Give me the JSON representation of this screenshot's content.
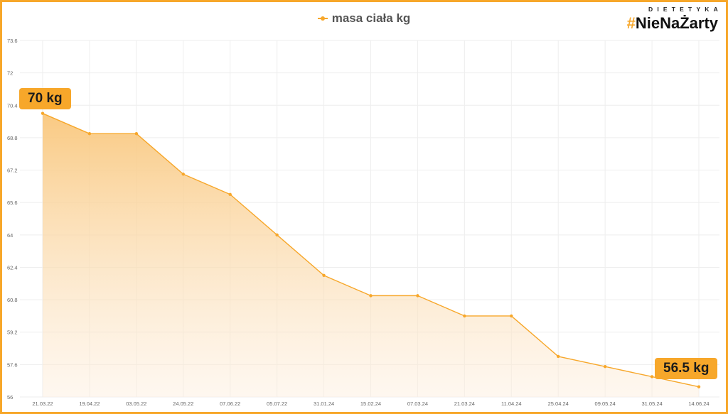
{
  "legend": {
    "label": "masa ciała kg"
  },
  "logo": {
    "top_text": "DIETETYKA",
    "hash": "#",
    "name": "NieNaŻarty"
  },
  "callouts": {
    "start": "70 kg",
    "end": "56.5 kg"
  },
  "colors": {
    "accent": "#f7a72a",
    "frame": "#f7a72a",
    "grid": "#eeeeee",
    "tick_text": "#666666"
  },
  "chart_data": {
    "type": "area",
    "title": "",
    "series": [
      {
        "name": "masa ciała kg",
        "values": [
          70.0,
          69.0,
          69.0,
          67.0,
          66.0,
          64.0,
          62.0,
          61.0,
          61.0,
          60.0,
          60.0,
          58.0,
          57.5,
          57.0,
          56.5
        ]
      }
    ],
    "categories": [
      "21.03.22",
      "19.04.22",
      "03.05.22",
      "24.05.22",
      "07.06.22",
      "05.07.22",
      "31.01.24",
      "15.02.24",
      "07.03.24",
      "21.03.24",
      "11.04.24",
      "25.04.24",
      "09.05.24",
      "31.05.24",
      "14.06.24"
    ],
    "y_ticks": [
      "56",
      "57.6",
      "59.2",
      "60.8",
      "62.4",
      "64",
      "65.6",
      "67.2",
      "68.8",
      "70.4",
      "72",
      "73.6"
    ],
    "ylim": [
      56,
      73.6
    ],
    "xlabel": "",
    "ylabel": "",
    "grid": true,
    "legend_position": "top-center"
  }
}
